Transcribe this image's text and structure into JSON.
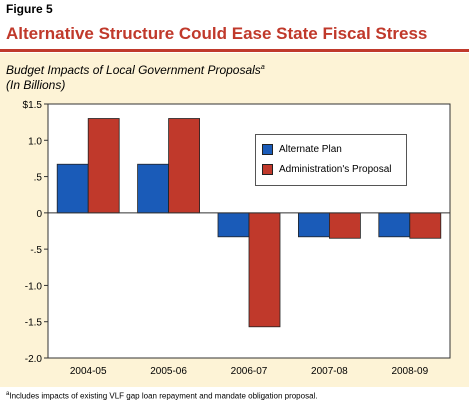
{
  "figure_label": "Figure 5",
  "figure_title": "Alternative Structure Could Ease State Fiscal Stress",
  "chart_title_line1": "Budget Impacts of Local Government Proposals",
  "chart_title_sup": "a",
  "chart_title_line2": "(In Billions)",
  "footnote_sup": "a",
  "footnote_text": "Includes impacts of existing VLF gap loan repayment and mandate obligation proposal.",
  "colors": {
    "title": "#c0392b",
    "panel": "#fdf3d6",
    "alternate_plan": "#1a5bb8",
    "administration": "#c0392b"
  },
  "chart_data": {
    "type": "bar",
    "categories": [
      "2004-05",
      "2005-06",
      "2006-07",
      "2007-08",
      "2008-09"
    ],
    "series": [
      {
        "name": "Alternate Plan",
        "values": [
          0.67,
          0.67,
          -0.33,
          -0.33,
          -0.33
        ]
      },
      {
        "name": "Administration's Proposal",
        "values": [
          1.3,
          1.3,
          -1.57,
          -0.35,
          -0.35
        ]
      }
    ],
    "y_ticks": [
      1.5,
      1.0,
      0.5,
      0,
      -0.5,
      -1.0,
      -1.5,
      -2.0
    ],
    "y_tick_labels": [
      "$1.5",
      "1.0",
      ".5",
      "0",
      "-.5",
      "-1.0",
      "-1.5",
      "-2.0"
    ],
    "ylim": [
      -2.0,
      1.5
    ],
    "legend_position": "upper-right",
    "grid": false
  }
}
